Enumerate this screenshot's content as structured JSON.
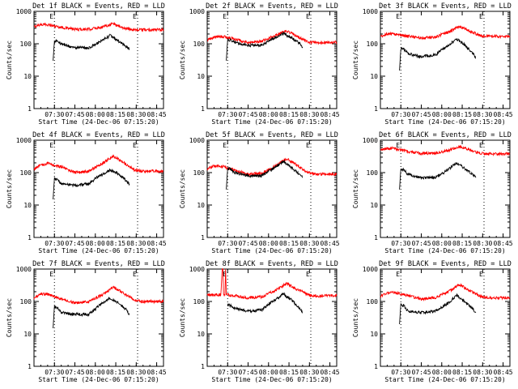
{
  "chart_data": [
    {
      "type": "line",
      "title": "Det 1f BLACK = Events, RED = LLD",
      "xlabel": "Start Time (24-Dec-06 07:15:20)",
      "ylabel": "Counts/sec",
      "x_ticks": [
        "07:30",
        "07:45",
        "08:00",
        "08:15",
        "08:30",
        "08:45"
      ],
      "y_ticks": [
        "1",
        "10",
        "100",
        "1000"
      ],
      "ylim": [
        1,
        1000
      ],
      "yscale": "log",
      "x_range_min": [
        0,
        95
      ],
      "marker_label": "E",
      "marker_lines_min": [
        15,
        76
      ],
      "series": [
        {
          "color": "#ff0000",
          "x": [
            0,
            4,
            10,
            20,
            30,
            40,
            50,
            58,
            66,
            74,
            80,
            95
          ],
          "y": [
            330,
            390,
            390,
            320,
            280,
            280,
            330,
            420,
            300,
            270,
            270,
            270
          ]
        },
        {
          "color": "#000000",
          "x": [
            14,
            15,
            17,
            20,
            30,
            40,
            48,
            56,
            62,
            68,
            70
          ],
          "y": [
            30,
            120,
            120,
            100,
            75,
            75,
            110,
            180,
            120,
            80,
            70
          ]
        }
      ]
    },
    {
      "type": "line",
      "title": "Det 2f BLACK = Events, RED = LLD",
      "xlabel": "Start Time (24-Dec-06 07:15:20)",
      "ylabel": "Counts/sec",
      "x_ticks": [
        "07:30",
        "07:45",
        "08:00",
        "08:15",
        "08:30",
        "08:45"
      ],
      "y_ticks": [
        "1",
        "10",
        "100",
        "1000"
      ],
      "ylim": [
        1,
        1000
      ],
      "yscale": "log",
      "x_range_min": [
        0,
        95
      ],
      "marker_label": "E",
      "marker_lines_min": [
        15,
        76
      ],
      "series": [
        {
          "color": "#ff0000",
          "x": [
            0,
            5,
            10,
            20,
            30,
            40,
            50,
            58,
            66,
            74,
            80,
            95
          ],
          "y": [
            130,
            160,
            170,
            140,
            110,
            120,
            180,
            260,
            170,
            110,
            110,
            110
          ]
        },
        {
          "color": "#000000",
          "x": [
            14,
            15,
            17,
            20,
            30,
            40,
            48,
            56,
            62,
            68,
            70
          ],
          "y": [
            30,
            130,
            130,
            110,
            90,
            90,
            140,
            210,
            150,
            100,
            80
          ]
        }
      ]
    },
    {
      "type": "line",
      "title": "Det 3f BLACK = Events, RED = LLD",
      "xlabel": "Start Time (24-Dec-06 07:15:20)",
      "ylabel": "Counts/sec",
      "x_ticks": [
        "07:30",
        "07:45",
        "08:00",
        "08:15",
        "08:30",
        "08:45"
      ],
      "y_ticks": [
        "1",
        "10",
        "100",
        "1000"
      ],
      "ylim": [
        1,
        1000
      ],
      "yscale": "log",
      "x_range_min": [
        0,
        95
      ],
      "marker_label": "E",
      "marker_lines_min": [
        15,
        76
      ],
      "series": [
        {
          "color": "#ff0000",
          "x": [
            0,
            5,
            10,
            20,
            30,
            40,
            50,
            58,
            66,
            74,
            80,
            95
          ],
          "y": [
            160,
            200,
            200,
            170,
            150,
            160,
            230,
            350,
            240,
            170,
            170,
            170
          ]
        },
        {
          "color": "#000000",
          "x": [
            14,
            15,
            17,
            20,
            30,
            40,
            48,
            56,
            62,
            68,
            70
          ],
          "y": [
            15,
            70,
            70,
            50,
            40,
            45,
            80,
            140,
            90,
            50,
            35
          ]
        }
      ]
    },
    {
      "type": "line",
      "title": "Det 4f BLACK = Events, RED = LLD",
      "xlabel": "Start Time (24-Dec-06 07:15:20)",
      "ylabel": "Counts/sec",
      "x_ticks": [
        "07:30",
        "07:45",
        "08:00",
        "08:15",
        "08:30",
        "08:45"
      ],
      "y_ticks": [
        "1",
        "10",
        "100",
        "1000"
      ],
      "ylim": [
        1,
        1000
      ],
      "yscale": "log",
      "x_range_min": [
        0,
        95
      ],
      "marker_label": "E",
      "marker_lines_min": [
        15,
        76
      ],
      "series": [
        {
          "color": "#ff0000",
          "x": [
            0,
            5,
            10,
            20,
            30,
            40,
            50,
            58,
            66,
            74,
            80,
            95
          ],
          "y": [
            130,
            170,
            190,
            150,
            100,
            110,
            190,
            320,
            200,
            120,
            110,
            110
          ]
        },
        {
          "color": "#000000",
          "x": [
            14,
            15,
            17,
            20,
            30,
            40,
            48,
            56,
            62,
            68,
            70
          ],
          "y": [
            15,
            65,
            60,
            45,
            40,
            45,
            80,
            120,
            90,
            55,
            45
          ]
        }
      ]
    },
    {
      "type": "line",
      "title": "Det 5f BLACK = Events, RED = LLD",
      "xlabel": "Start Time (24-Dec-06 07:15:20)",
      "ylabel": "Counts/sec",
      "x_ticks": [
        "07:30",
        "07:45",
        "08:00",
        "08:15",
        "08:30",
        "08:45"
      ],
      "y_ticks": [
        "1",
        "10",
        "100",
        "1000"
      ],
      "ylim": [
        1,
        1000
      ],
      "yscale": "log",
      "x_range_min": [
        0,
        95
      ],
      "marker_label": "E",
      "marker_lines_min": [
        15,
        76
      ],
      "series": [
        {
          "color": "#ff0000",
          "x": [
            0,
            5,
            10,
            20,
            30,
            40,
            50,
            58,
            66,
            74,
            80,
            95
          ],
          "y": [
            130,
            160,
            160,
            120,
            90,
            95,
            160,
            270,
            170,
            100,
            90,
            90
          ]
        },
        {
          "color": "#000000",
          "x": [
            14,
            15,
            17,
            20,
            30,
            40,
            48,
            56,
            62,
            68,
            70
          ],
          "y": [
            30,
            130,
            130,
            100,
            80,
            80,
            130,
            220,
            140,
            85,
            70
          ]
        }
      ]
    },
    {
      "type": "line",
      "title": "Det 6f BLACK = Events, RED = LLD",
      "xlabel": "Start Time (24-Dec-06 07:15:20)",
      "ylabel": "Counts/sec",
      "x_ticks": [
        "07:30",
        "07:45",
        "08:00",
        "08:15",
        "08:30",
        "08:45"
      ],
      "y_ticks": [
        "1",
        "10",
        "100",
        "1000"
      ],
      "ylim": [
        1,
        1000
      ],
      "yscale": "log",
      "x_range_min": [
        0,
        95
      ],
      "marker_label": "E",
      "marker_lines_min": [
        15,
        76
      ],
      "series": [
        {
          "color": "#ff0000",
          "x": [
            0,
            5,
            10,
            20,
            30,
            40,
            50,
            58,
            66,
            74,
            80,
            95
          ],
          "y": [
            500,
            560,
            550,
            450,
            390,
            400,
            480,
            650,
            500,
            390,
            380,
            380
          ]
        },
        {
          "color": "#000000",
          "x": [
            14,
            15,
            17,
            20,
            30,
            40,
            48,
            56,
            62,
            68,
            70
          ],
          "y": [
            30,
            130,
            120,
            90,
            70,
            70,
            110,
            200,
            130,
            85,
            70
          ]
        }
      ]
    },
    {
      "type": "line",
      "title": "Det 7f BLACK = Events, RED = LLD",
      "xlabel": "Start Time (24-Dec-06 07:15:20)",
      "ylabel": "Counts/sec",
      "x_ticks": [
        "07:30",
        "07:45",
        "08:00",
        "08:15",
        "08:30",
        "08:45"
      ],
      "y_ticks": [
        "1",
        "10",
        "100",
        "1000"
      ],
      "ylim": [
        1,
        1000
      ],
      "yscale": "log",
      "x_range_min": [
        0,
        95
      ],
      "marker_label": "E",
      "marker_lines_min": [
        15,
        76
      ],
      "series": [
        {
          "color": "#ff0000",
          "x": [
            0,
            5,
            10,
            20,
            30,
            40,
            50,
            58,
            66,
            74,
            80,
            95
          ],
          "y": [
            120,
            170,
            170,
            120,
            90,
            100,
            160,
            280,
            180,
            110,
            100,
            100
          ]
        },
        {
          "color": "#000000",
          "x": [
            14,
            15,
            17,
            20,
            30,
            40,
            48,
            56,
            62,
            68,
            70
          ],
          "y": [
            15,
            70,
            65,
            45,
            40,
            40,
            75,
            130,
            90,
            55,
            40
          ]
        }
      ]
    },
    {
      "type": "line",
      "title": "Det 8f BLACK = Events, RED = LLD",
      "xlabel": "Start Time (24-Dec-06 07:15:20)",
      "ylabel": "Counts/sec",
      "x_ticks": [
        "07:30",
        "07:45",
        "08:00",
        "08:15",
        "08:30",
        "08:45"
      ],
      "y_ticks": [
        "1",
        "10",
        "100",
        "1000"
      ],
      "ylim": [
        1,
        1000
      ],
      "yscale": "log",
      "x_range_min": [
        0,
        95
      ],
      "marker_label": "E",
      "marker_lines_min": [
        15,
        76
      ],
      "series": [
        {
          "color": "#ff0000",
          "x": [
            0,
            10,
            11,
            11.5,
            12,
            13,
            13.5,
            14,
            20,
            30,
            40,
            50,
            58,
            66,
            74,
            80,
            95
          ],
          "y": [
            160,
            160,
            1000,
            1000,
            160,
            160,
            1000,
            160,
            150,
            130,
            140,
            220,
            360,
            240,
            160,
            150,
            150
          ]
        },
        {
          "color": "#000000",
          "x": [
            15,
            17,
            20,
            30,
            40,
            48,
            56,
            62,
            68,
            70
          ],
          "y": [
            80,
            75,
            60,
            50,
            55,
            100,
            170,
            110,
            60,
            45
          ]
        }
      ]
    },
    {
      "type": "line",
      "title": "Det 9f BLACK = Events, RED = LLD",
      "xlabel": "Start Time (24-Dec-06 07:15:20)",
      "ylabel": "Counts/sec",
      "x_ticks": [
        "07:30",
        "07:45",
        "08:00",
        "08:15",
        "08:30",
        "08:45"
      ],
      "y_ticks": [
        "1",
        "10",
        "100",
        "1000"
      ],
      "ylim": [
        1,
        1000
      ],
      "yscale": "log",
      "x_range_min": [
        0,
        95
      ],
      "marker_label": "E",
      "marker_lines_min": [
        15,
        76
      ],
      "series": [
        {
          "color": "#ff0000",
          "x": [
            0,
            5,
            10,
            20,
            30,
            40,
            50,
            58,
            66,
            74,
            80,
            95
          ],
          "y": [
            150,
            180,
            190,
            150,
            120,
            130,
            200,
            330,
            210,
            140,
            130,
            130
          ]
        },
        {
          "color": "#000000",
          "x": [
            14,
            15,
            17,
            20,
            30,
            40,
            48,
            56,
            62,
            68,
            70
          ],
          "y": [
            20,
            80,
            75,
            50,
            45,
            50,
            80,
            150,
            100,
            60,
            45
          ]
        }
      ]
    }
  ]
}
